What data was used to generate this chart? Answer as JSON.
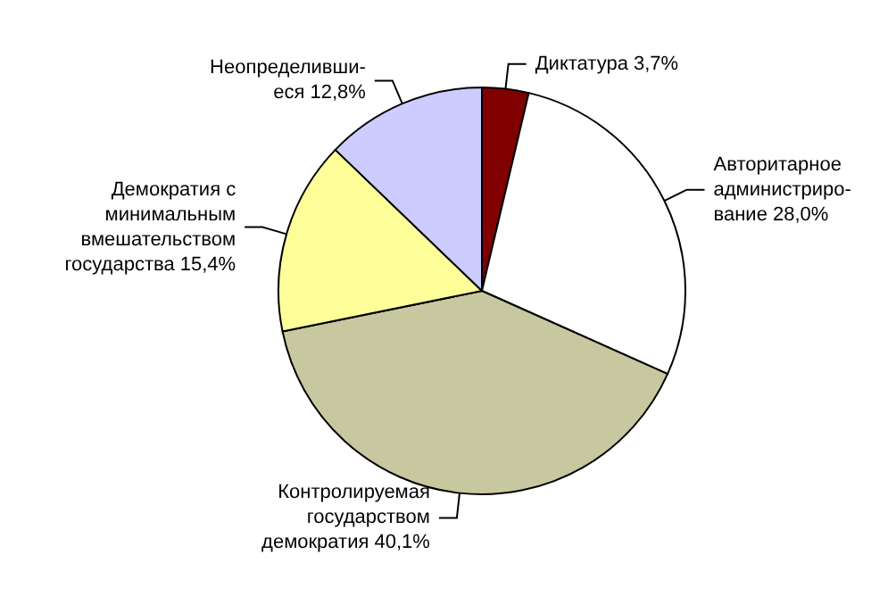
{
  "chart_data": {
    "type": "pie",
    "categories": [
      "Диктатура",
      "Авторитарное\nадминистриро-\nвание",
      "Контролируемая\nгосударством\nдемократия",
      "Демократия с\nминимальным\nвмешательством\nгосударства",
      "Неопределивши-\nеся"
    ],
    "values": [
      3.7,
      28.0,
      40.1,
      15.4,
      12.8
    ],
    "value_labels": [
      "3,7%",
      "28,0%",
      "40,1%",
      "15,4%",
      "12,8%"
    ],
    "colors": [
      "#800000",
      "#ffffff",
      "#c8c8a0",
      "#ffff99",
      "#ccccff"
    ],
    "legend": false
  }
}
